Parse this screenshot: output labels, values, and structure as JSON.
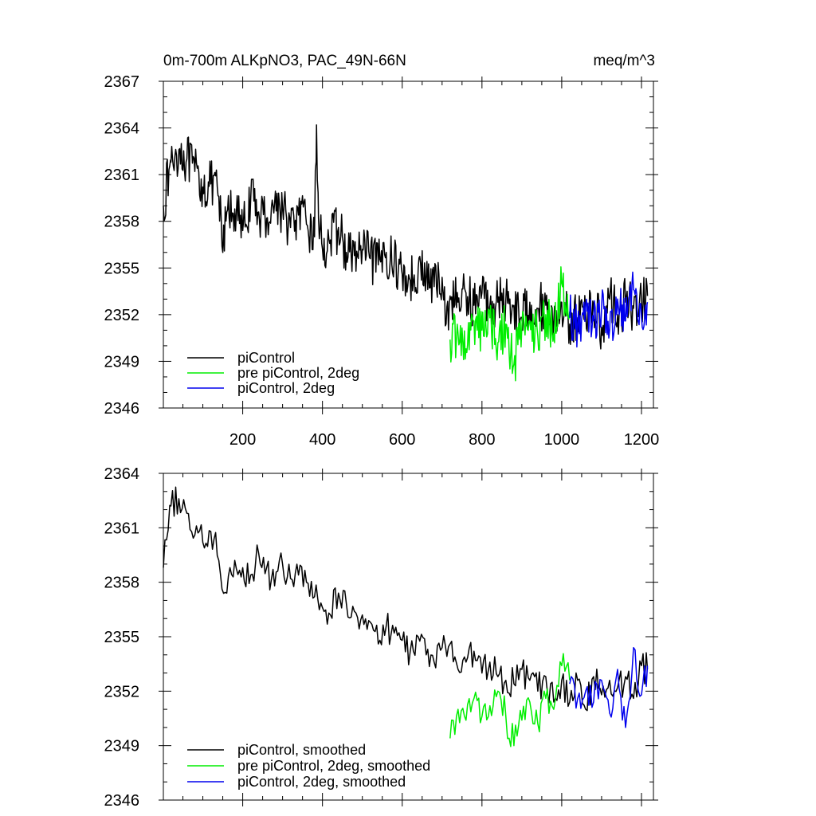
{
  "chart_data": [
    {
      "type": "line",
      "title": "0m-700m ALKpNO3, PAC_49N-66N",
      "units": "meq/m^3",
      "xlabel": "",
      "ylabel": "",
      "xlim": [
        1,
        1230
      ],
      "ylim": [
        2346,
        2367
      ],
      "x_ticks": [
        200,
        400,
        600,
        800,
        1000,
        1200
      ],
      "x_tick_labels": [
        "200",
        "400",
        "600",
        "800",
        "1000",
        "1200"
      ],
      "y_ticks": [
        2346,
        2349,
        2352,
        2355,
        2358,
        2361,
        2364,
        2367
      ],
      "y_tick_labels": [
        "2346",
        "2349",
        "2352",
        "2355",
        "2358",
        "2361",
        "2364",
        "2367"
      ],
      "legend_position": "bottom-left",
      "series": [
        {
          "name": "piControl",
          "color": "#000000",
          "x": [
            1,
            20,
            40,
            60,
            80,
            100,
            120,
            140,
            150,
            160,
            180,
            200,
            220,
            240,
            260,
            280,
            300,
            320,
            340,
            360,
            380,
            385,
            390,
            400,
            420,
            440,
            460,
            480,
            500,
            520,
            540,
            560,
            580,
            600,
            620,
            640,
            660,
            680,
            700,
            710,
            720,
            740,
            760,
            780,
            800,
            820,
            840,
            860,
            880,
            900,
            920,
            940,
            960,
            980,
            1000,
            1020,
            1040,
            1060,
            1080,
            1100,
            1120,
            1140,
            1160,
            1180,
            1200,
            1215
          ],
          "values": [
            2359.0,
            2361.8,
            2362.6,
            2362.0,
            2361.2,
            2360.2,
            2360.4,
            2359.6,
            2356.0,
            2358.6,
            2358.8,
            2357.4,
            2359.4,
            2358.6,
            2358.2,
            2359.2,
            2358.8,
            2357.6,
            2358.4,
            2357.8,
            2357.0,
            2364.2,
            2358.2,
            2356.2,
            2356.8,
            2357.6,
            2356.0,
            2355.8,
            2356.2,
            2355.6,
            2355.2,
            2356.0,
            2355.4,
            2354.6,
            2354.2,
            2355.0,
            2354.4,
            2353.8,
            2354.4,
            2351.4,
            2353.2,
            2352.8,
            2353.4,
            2352.6,
            2353.4,
            2352.6,
            2352.8,
            2353.0,
            2352.6,
            2351.8,
            2352.8,
            2352.4,
            2352.6,
            2351.6,
            2352.8,
            2351.4,
            2351.8,
            2352.2,
            2352.6,
            2351.2,
            2353.0,
            2352.0,
            2352.8,
            2352.4,
            2353.0,
            2353.2
          ]
        },
        {
          "name": "pre piControl, 2deg",
          "color": "#00ee00",
          "x": [
            720,
            740,
            760,
            780,
            800,
            820,
            840,
            860,
            880,
            900,
            920,
            940,
            960,
            980,
            1000,
            1020
          ],
          "values": [
            2350.4,
            2350.8,
            2349.8,
            2351.6,
            2351.0,
            2351.8,
            2350.2,
            2351.4,
            2348.8,
            2351.2,
            2351.6,
            2350.6,
            2352.0,
            2350.8,
            2354.0,
            2352.2
          ]
        },
        {
          "name": "piControl, 2deg",
          "color": "#0000ee",
          "x": [
            1020,
            1040,
            1060,
            1080,
            1100,
            1120,
            1140,
            1160,
            1180,
            1200,
            1215
          ],
          "values": [
            2351.8,
            2351.4,
            2352.6,
            2351.6,
            2352.4,
            2351.0,
            2353.0,
            2351.6,
            2353.6,
            2351.8,
            2352.8
          ]
        }
      ]
    },
    {
      "type": "line",
      "title": "",
      "xlabel": "",
      "ylabel": "",
      "xlim": [
        1,
        1230
      ],
      "ylim": [
        2346,
        2364
      ],
      "x_ticks": [
        200,
        400,
        600,
        800,
        1000,
        1200
      ],
      "y_ticks": [
        2346,
        2349,
        2352,
        2355,
        2358,
        2361,
        2364
      ],
      "y_tick_labels": [
        "2346",
        "2349",
        "2352",
        "2355",
        "2358",
        "2361",
        "2364"
      ],
      "legend_position": "bottom-left",
      "series": [
        {
          "name": "piControl, smoothed",
          "color": "#000000",
          "x": [
            1,
            20,
            40,
            60,
            80,
            100,
            120,
            140,
            160,
            180,
            200,
            220,
            240,
            260,
            280,
            300,
            320,
            340,
            360,
            380,
            400,
            420,
            440,
            460,
            480,
            500,
            520,
            540,
            560,
            580,
            600,
            620,
            640,
            660,
            680,
            700,
            720,
            740,
            760,
            780,
            800,
            820,
            840,
            860,
            880,
            900,
            920,
            940,
            960,
            980,
            1000,
            1020,
            1040,
            1060,
            1080,
            1100,
            1120,
            1140,
            1160,
            1180,
            1200,
            1215
          ],
          "values": [
            2358.8,
            2362.2,
            2362.6,
            2361.8,
            2360.6,
            2360.2,
            2360.8,
            2359.2,
            2357.4,
            2359.2,
            2358.8,
            2358.4,
            2359.6,
            2358.8,
            2357.8,
            2359.0,
            2358.2,
            2358.4,
            2358.0,
            2357.2,
            2356.6,
            2356.2,
            2357.4,
            2356.8,
            2356.4,
            2356.2,
            2355.8,
            2354.6,
            2355.6,
            2355.2,
            2354.8,
            2354.2,
            2355.0,
            2354.0,
            2353.6,
            2354.4,
            2354.6,
            2353.2,
            2353.6,
            2354.2,
            2353.0,
            2353.6,
            2352.8,
            2352.6,
            2352.4,
            2353.2,
            2352.6,
            2352.0,
            2352.8,
            2351.4,
            2352.6,
            2351.4,
            2352.6,
            2351.0,
            2352.8,
            2351.8,
            2352.6,
            2352.2,
            2352.8,
            2351.6,
            2353.4,
            2353.2
          ]
        },
        {
          "name": "pre piControl, 2deg, smoothed",
          "color": "#00ee00",
          "x": [
            720,
            740,
            760,
            780,
            800,
            820,
            840,
            860,
            880,
            900,
            920,
            940,
            960,
            980,
            1000,
            1020
          ],
          "values": [
            2349.4,
            2351.0,
            2350.4,
            2351.6,
            2350.6,
            2351.2,
            2352.0,
            2350.6,
            2349.0,
            2350.4,
            2351.4,
            2350.2,
            2351.6,
            2351.0,
            2353.4,
            2352.6
          ]
        },
        {
          "name": "piControl, 2deg, smoothed",
          "color": "#0000ee",
          "x": [
            1020,
            1040,
            1060,
            1080,
            1100,
            1120,
            1140,
            1160,
            1180,
            1200,
            1215
          ],
          "values": [
            2352.4,
            2351.6,
            2352.0,
            2351.4,
            2352.6,
            2350.8,
            2353.2,
            2350.0,
            2354.4,
            2351.8,
            2353.4
          ]
        }
      ]
    }
  ]
}
